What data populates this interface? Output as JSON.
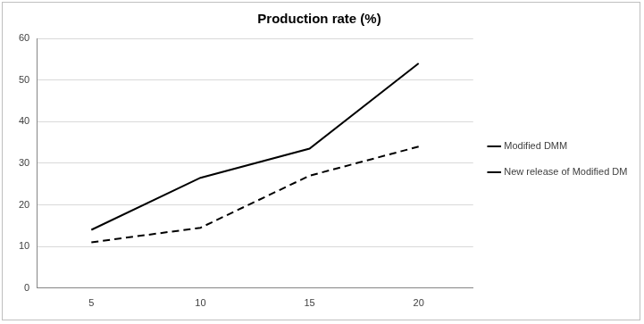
{
  "chart_data": {
    "type": "line",
    "title": "Production rate (%)",
    "categories": [
      "5",
      "10",
      "15",
      "20"
    ],
    "series": [
      {
        "name": "Modified DMM",
        "color": "#000000",
        "line_style": "dashed",
        "values": [
          11,
          14.5,
          27,
          34
        ]
      },
      {
        "name": "New release of Modified DMM",
        "color": "#000000",
        "line_style": "solid",
        "values": [
          14,
          26.5,
          33.5,
          54
        ]
      }
    ],
    "ylim": [
      0,
      60
    ],
    "yticks": [
      0,
      10,
      20,
      30,
      40,
      50,
      60
    ],
    "grid": true,
    "legend": "right"
  }
}
